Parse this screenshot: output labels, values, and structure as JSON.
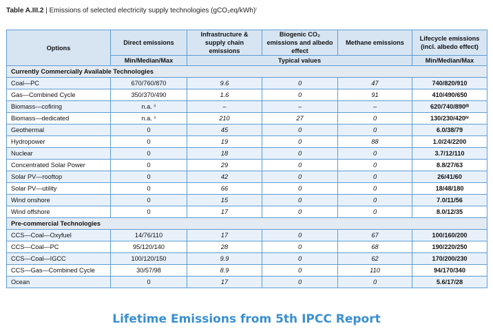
{
  "header": {
    "table_label": "Table A.III.2",
    "title": "| Emissions of selected electricity supply technologies (gCO₂eq/kWh)ⁱ"
  },
  "table": {
    "columns": [
      "Options",
      "Direct emissions",
      "Infrastructure & supply chain emissions",
      "Biogenic CO₂ emissions and albedo effect",
      "Methane emissions",
      "Lifecycle emissions (incl. albedo effect)"
    ],
    "subheaders": [
      "Min/Median/Max",
      "Typical values",
      "Min/Median/Max"
    ],
    "sections": [
      {
        "title": "Currently Commercially Available Technologies",
        "rows": [
          [
            "Coal—PC",
            "670/760/870",
            "9.6",
            "0",
            "47",
            "740/820/910"
          ],
          [
            "Gas—Combined Cycle",
            "350/370/490",
            "1.6",
            "0",
            "91",
            "410/490/650"
          ],
          [
            "Biomass—cofiring",
            "n.a. ⁱⁱ",
            "–",
            "–",
            "–",
            "620/740/890ⁱⁱⁱ"
          ],
          [
            "Biomass—dedicated",
            "n.a. ⁱⁱ",
            "210",
            "27",
            "0",
            "130/230/420ⁱᵛ"
          ],
          [
            "Geothermal",
            "0",
            "45",
            "0",
            "0",
            "6.0/38/79"
          ],
          [
            "Hydropower",
            "0",
            "19",
            "0",
            "88",
            "1.0/24/2200"
          ],
          [
            "Nuclear",
            "0",
            "18",
            "0",
            "0",
            "3.7/12/110"
          ],
          [
            "Concentrated Solar Power",
            "0",
            "29",
            "0",
            "0",
            "8.8/27/63"
          ],
          [
            "Solar PV—rooftop",
            "0",
            "42",
            "0",
            "0",
            "26/41/60"
          ],
          [
            "Solar PV—utility",
            "0",
            "66",
            "0",
            "0",
            "18/48/180"
          ],
          [
            "Wind onshore",
            "0",
            "15",
            "0",
            "0",
            "7.0/11/56"
          ],
          [
            "Wind offshore",
            "0",
            "17",
            "0",
            "0",
            "8.0/12/35"
          ]
        ]
      },
      {
        "title": "Pre-commercial Technologies",
        "rows": [
          [
            "CCS—Coal—Oxyfuel",
            "14/76/110",
            "17",
            "0",
            "67",
            "100/160/200"
          ],
          [
            "CCS—Coal—PC",
            "95/120/140",
            "28",
            "0",
            "68",
            "190/220/250"
          ],
          [
            "CCS—Coal—IGCC",
            "100/120/150",
            "9.9",
            "0",
            "62",
            "170/200/230"
          ],
          [
            "CCS—Gas—Combined Cycle",
            "30/57/98",
            "8.9",
            "0",
            "110",
            "94/170/340"
          ],
          [
            "Ocean",
            "0",
            "17",
            "0",
            "0",
            "5.6/17/28"
          ]
        ]
      }
    ]
  },
  "caption": "Lifetime Emissions from 5th IPCC Report"
}
